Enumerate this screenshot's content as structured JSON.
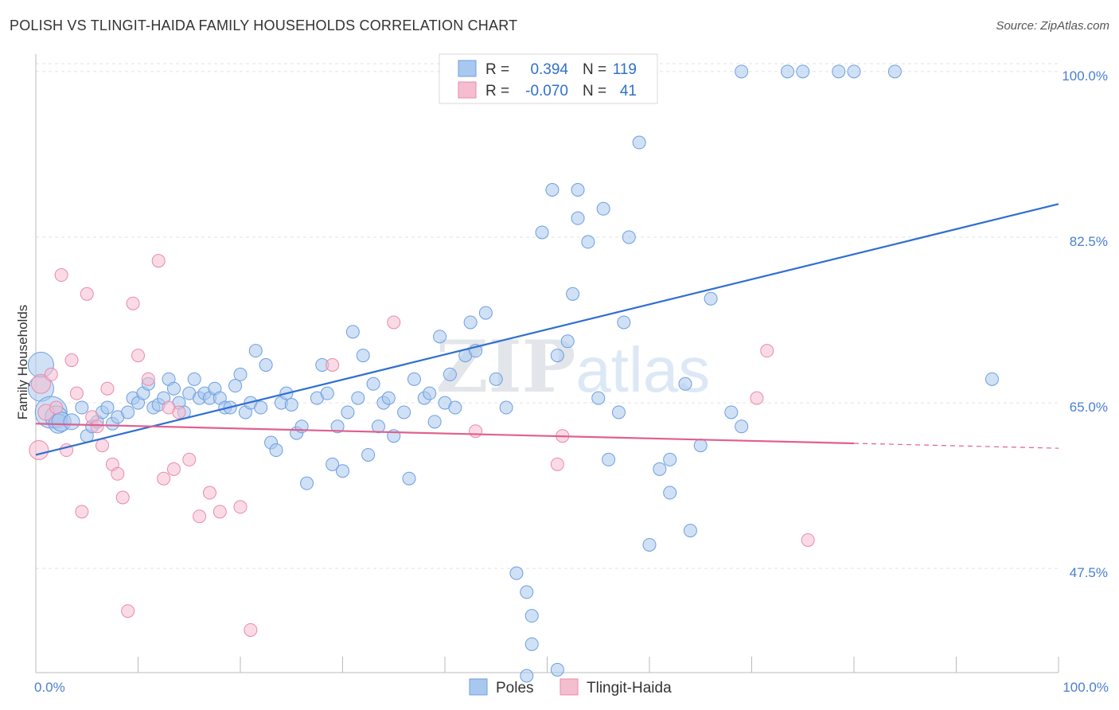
{
  "title": "POLISH VS TLINGIT-HAIDA FAMILY HOUSEHOLDS CORRELATION CHART",
  "source": "Source: ZipAtlas.com",
  "watermark": "ZIPatlas",
  "colors": {
    "poles_fill": "#a9c8ef",
    "poles_stroke": "#6d9ee0",
    "poles_line": "#2f6fd0",
    "tlingit_fill": "#f5bdd0",
    "tlingit_stroke": "#e88aab",
    "tlingit_line": "#e0608f",
    "axis_label": "#4a7fd1",
    "grid": "#e3e3e3"
  },
  "legend": {
    "rows": [
      {
        "r_label": "R =",
        "r_value": "0.394",
        "n_label": "N =",
        "n_value": "119"
      },
      {
        "r_label": "R =",
        "r_value": "-0.070",
        "n_label": "N =",
        "n_value": "41"
      }
    ]
  },
  "bottom_legend": [
    "Poles",
    "Tlingit-Haida"
  ],
  "chart_data": {
    "type": "scatter",
    "title": "POLISH VS TLINGIT-HAIDA FAMILY HOUSEHOLDS CORRELATION CHART",
    "xlabel": "",
    "ylabel": "Family Households",
    "xlim": [
      0,
      100
    ],
    "ylim": [
      36.5,
      101.5
    ],
    "x_tick_labels": [
      "0.0%",
      "100.0%"
    ],
    "y_ticks": [
      47.5,
      65.0,
      82.5,
      100.0
    ],
    "y_tick_labels": [
      "47.5%",
      "65.0%",
      "82.5%",
      "100.0%"
    ],
    "grid": true,
    "series": [
      {
        "name": "Poles",
        "r": 0.394,
        "n": 119,
        "trend": {
          "x": [
            0,
            100
          ],
          "y": [
            59.5,
            86.0
          ],
          "dashed_from": null
        },
        "points": [
          [
            0.5,
            69.0,
            16
          ],
          [
            0.5,
            66.5,
            16
          ],
          [
            1.5,
            64.0,
            20
          ],
          [
            2.0,
            63.5,
            14
          ],
          [
            2.2,
            62.8,
            12
          ],
          [
            2.5,
            63.0,
            12
          ],
          [
            3.5,
            63.0,
            10
          ],
          [
            4.5,
            64.5,
            8
          ],
          [
            5.0,
            61.5,
            8
          ],
          [
            5.5,
            62.5,
            8
          ],
          [
            6.0,
            63.0,
            8
          ],
          [
            6.5,
            64.0,
            8
          ],
          [
            7.0,
            64.5,
            8
          ],
          [
            7.5,
            62.8,
            8
          ],
          [
            8.0,
            63.5,
            8
          ],
          [
            9.0,
            64.0,
            8
          ],
          [
            9.5,
            65.5,
            8
          ],
          [
            10.0,
            65.0,
            8
          ],
          [
            10.5,
            66.0,
            8
          ],
          [
            11.0,
            67.0,
            8
          ],
          [
            11.5,
            64.5,
            8
          ],
          [
            12.0,
            64.8,
            8
          ],
          [
            12.5,
            65.5,
            8
          ],
          [
            13.0,
            67.5,
            8
          ],
          [
            13.5,
            66.5,
            8
          ],
          [
            14.0,
            65.0,
            8
          ],
          [
            14.5,
            64.0,
            8
          ],
          [
            15.0,
            66.0,
            8
          ],
          [
            15.5,
            67.5,
            8
          ],
          [
            16.0,
            65.5,
            8
          ],
          [
            16.5,
            66.0,
            8
          ],
          [
            17.0,
            65.5,
            8
          ],
          [
            17.5,
            66.5,
            8
          ],
          [
            18.0,
            65.5,
            8
          ],
          [
            18.5,
            64.5,
            8
          ],
          [
            19.0,
            64.5,
            8
          ],
          [
            19.5,
            66.8,
            8
          ],
          [
            20.0,
            68.0,
            8
          ],
          [
            20.5,
            64.0,
            8
          ],
          [
            21.0,
            65.0,
            8
          ],
          [
            21.5,
            70.5,
            8
          ],
          [
            22.0,
            64.5,
            8
          ],
          [
            22.5,
            69.0,
            8
          ],
          [
            23.0,
            60.8,
            8
          ],
          [
            23.5,
            60.0,
            8
          ],
          [
            24.0,
            65.0,
            8
          ],
          [
            24.5,
            66.0,
            8
          ],
          [
            25.0,
            64.8,
            8
          ],
          [
            25.5,
            61.8,
            8
          ],
          [
            26.0,
            62.5,
            8
          ],
          [
            26.5,
            56.5,
            8
          ],
          [
            27.5,
            65.5,
            8
          ],
          [
            28.0,
            69.0,
            8
          ],
          [
            28.5,
            66.0,
            8
          ],
          [
            29.0,
            58.5,
            8
          ],
          [
            29.5,
            62.5,
            8
          ],
          [
            30.0,
            57.8,
            8
          ],
          [
            30.5,
            64.0,
            8
          ],
          [
            31.0,
            72.5,
            8
          ],
          [
            31.5,
            65.5,
            8
          ],
          [
            32.0,
            70.0,
            8
          ],
          [
            32.5,
            59.5,
            8
          ],
          [
            33.0,
            67.0,
            8
          ],
          [
            33.5,
            62.5,
            8
          ],
          [
            34.0,
            65.0,
            8
          ],
          [
            34.5,
            65.5,
            8
          ],
          [
            35.0,
            61.5,
            8
          ],
          [
            36.0,
            64.0,
            8
          ],
          [
            36.5,
            57.0,
            8
          ],
          [
            37.0,
            67.5,
            8
          ],
          [
            38.0,
            65.5,
            8
          ],
          [
            38.5,
            66.0,
            8
          ],
          [
            39.0,
            63.0,
            8
          ],
          [
            39.5,
            72.0,
            8
          ],
          [
            40.0,
            65.0,
            8
          ],
          [
            40.5,
            68.0,
            8
          ],
          [
            41.0,
            64.5,
            8
          ],
          [
            42.0,
            70.0,
            8
          ],
          [
            42.5,
            73.5,
            8
          ],
          [
            43.0,
            70.5,
            8
          ],
          [
            44.0,
            74.5,
            8
          ],
          [
            45.0,
            67.5,
            8
          ],
          [
            46.0,
            64.5,
            8
          ],
          [
            47.0,
            47.0,
            8
          ],
          [
            48.0,
            45.0,
            8
          ],
          [
            48.5,
            42.5,
            8
          ],
          [
            48.5,
            39.5,
            8
          ],
          [
            49.5,
            83.0,
            8
          ],
          [
            50.5,
            87.5,
            8
          ],
          [
            51.0,
            70.0,
            8
          ],
          [
            52.0,
            71.5,
            8
          ],
          [
            52.5,
            76.5,
            8
          ],
          [
            53.0,
            87.5,
            8
          ],
          [
            54.0,
            82.0,
            8
          ],
          [
            55.0,
            65.5,
            8
          ],
          [
            56.0,
            59.0,
            8
          ],
          [
            57.0,
            64.0,
            8
          ],
          [
            57.5,
            73.5,
            8
          ],
          [
            58.0,
            82.5,
            8
          ],
          [
            59.0,
            92.5,
            8
          ],
          [
            60.0,
            50.0,
            8
          ],
          [
            61.0,
            58.0,
            8
          ],
          [
            62.0,
            55.5,
            8
          ],
          [
            62.0,
            59.0,
            8
          ],
          [
            53.0,
            84.5,
            8
          ],
          [
            55.5,
            85.5,
            8
          ],
          [
            63.5,
            67.0,
            8
          ],
          [
            64.0,
            51.5,
            8
          ],
          [
            66.0,
            76.0,
            8
          ],
          [
            65.0,
            60.5,
            8
          ],
          [
            68.0,
            64.0,
            8
          ],
          [
            69.0,
            62.5,
            8
          ],
          [
            69.0,
            100.0,
            8
          ],
          [
            73.5,
            100.0,
            8
          ],
          [
            75.0,
            100.0,
            8
          ],
          [
            78.5,
            100.0,
            8
          ],
          [
            80.0,
            100.0,
            8
          ],
          [
            84.0,
            100.0,
            8
          ],
          [
            93.5,
            67.5,
            8
          ],
          [
            51.0,
            36.8,
            8
          ],
          [
            48.0,
            36.0,
            8
          ]
        ]
      },
      {
        "name": "Tlingit-Haida",
        "r": -0.07,
        "n": 41,
        "trend": {
          "x": [
            0,
            100
          ],
          "y": [
            62.8,
            60.2
          ],
          "dashed_from": 80
        },
        "points": [
          [
            0.3,
            60.0,
            12
          ],
          [
            0.5,
            67.0,
            12
          ],
          [
            1.0,
            64.0,
            10
          ],
          [
            1.5,
            68.0,
            8
          ],
          [
            2.0,
            64.5,
            8
          ],
          [
            2.5,
            78.5,
            8
          ],
          [
            3.0,
            60.0,
            8
          ],
          [
            3.5,
            69.5,
            8
          ],
          [
            4.0,
            66.0,
            8
          ],
          [
            4.5,
            53.5,
            8
          ],
          [
            5.0,
            76.5,
            8
          ],
          [
            5.5,
            63.5,
            8
          ],
          [
            6.0,
            62.5,
            8
          ],
          [
            6.5,
            60.5,
            8
          ],
          [
            7.0,
            66.5,
            8
          ],
          [
            7.5,
            58.5,
            8
          ],
          [
            8.0,
            57.5,
            8
          ],
          [
            8.5,
            55.0,
            8
          ],
          [
            9.0,
            43.0,
            8
          ],
          [
            9.5,
            75.5,
            8
          ],
          [
            10.0,
            70.0,
            8
          ],
          [
            11.0,
            67.5,
            8
          ],
          [
            12.0,
            80.0,
            8
          ],
          [
            12.5,
            57.0,
            8
          ],
          [
            13.0,
            64.5,
            8
          ],
          [
            13.5,
            58.0,
            8
          ],
          [
            14.0,
            64.0,
            8
          ],
          [
            15.0,
            59.0,
            8
          ],
          [
            16.0,
            53.0,
            8
          ],
          [
            17.0,
            55.5,
            8
          ],
          [
            18.0,
            53.5,
            8
          ],
          [
            20.0,
            54.0,
            8
          ],
          [
            21.0,
            41.0,
            8
          ],
          [
            29.0,
            69.0,
            8
          ],
          [
            35.0,
            73.5,
            8
          ],
          [
            43.0,
            62.0,
            8
          ],
          [
            51.5,
            61.5,
            8
          ],
          [
            51.0,
            58.5,
            8
          ],
          [
            70.5,
            65.5,
            8
          ],
          [
            71.5,
            70.5,
            8
          ],
          [
            75.5,
            50.5,
            8
          ]
        ]
      }
    ]
  }
}
